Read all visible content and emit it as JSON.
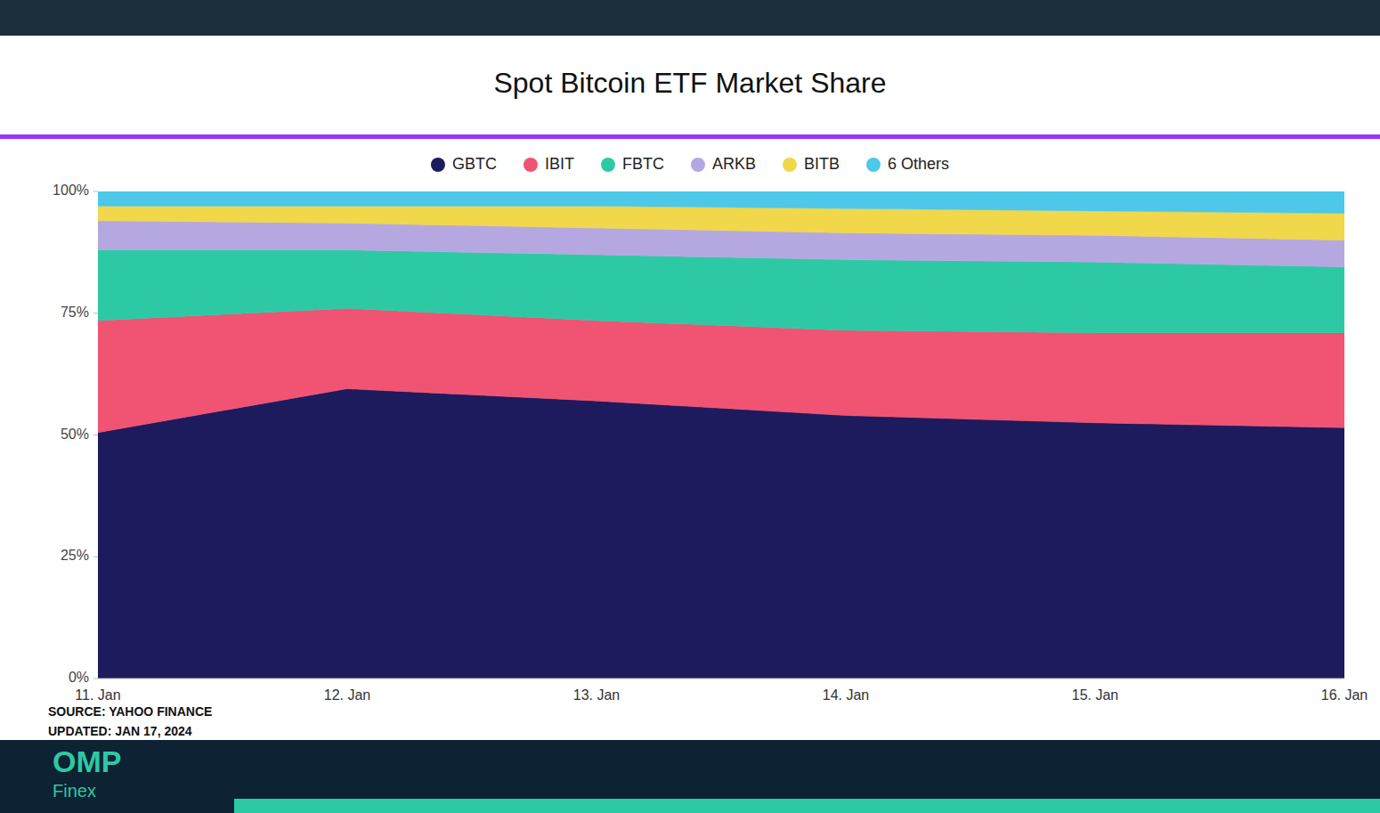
{
  "chart_data": {
    "type": "area",
    "title": "Spot Bitcoin ETF Market Share",
    "stacked": true,
    "categories": [
      "11. Jan",
      "12. Jan",
      "13. Jan",
      "14. Jan",
      "15. Jan",
      "16. Jan"
    ],
    "series": [
      {
        "name": "GBTC",
        "color": "#1e1a5e",
        "values": [
          50.5,
          59.5,
          57.0,
          54.0,
          52.5,
          51.5
        ]
      },
      {
        "name": "IBIT",
        "color": "#f05472",
        "values": [
          23.0,
          16.5,
          16.5,
          17.5,
          18.5,
          19.5
        ]
      },
      {
        "name": "FBTC",
        "color": "#2dc9a5",
        "values": [
          14.5,
          12.0,
          13.5,
          14.5,
          14.5,
          13.5
        ]
      },
      {
        "name": "ARKB",
        "color": "#b5a8e0",
        "values": [
          6.0,
          5.5,
          5.5,
          5.5,
          5.5,
          5.5
        ]
      },
      {
        "name": "BITB",
        "color": "#f0d84a",
        "values": [
          3.0,
          3.5,
          4.5,
          5.0,
          5.0,
          5.5
        ]
      },
      {
        "name": "6 Others",
        "color": "#4dc8e8",
        "values": [
          3.0,
          3.0,
          3.0,
          3.5,
          4.0,
          4.5
        ]
      }
    ],
    "ylim": [
      0,
      100
    ],
    "yticks": [
      {
        "value": 0,
        "label": "0%"
      },
      {
        "value": 25,
        "label": "25%"
      },
      {
        "value": 50,
        "label": "50%"
      },
      {
        "value": 75,
        "label": "75%"
      },
      {
        "value": 100,
        "label": "100%"
      }
    ],
    "grid": false,
    "legend": "top",
    "annotations": [
      "SOURCE: YAHOO FINANCE",
      "UPDATED: JAN 17, 2024",
      "OMP",
      "Finex"
    ]
  }
}
